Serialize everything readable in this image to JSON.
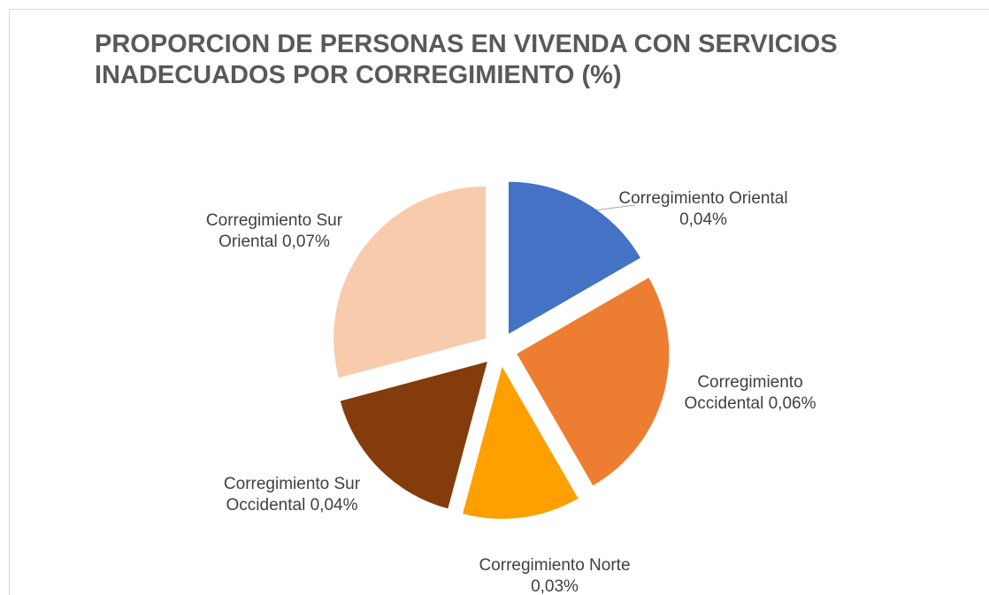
{
  "chart_data": {
    "type": "pie",
    "title": "PROPORCION DE PERSONAS EN VIVENDA CON SERVICIOS INADECUADOS POR CORREGIMIENTO (%)",
    "categories": [
      "Corregimiento Oriental",
      "Corregimiento Occidental",
      "Corregimiento Norte",
      "Corregimiento Sur Occidental",
      "Corregimiento Sur Oriental"
    ],
    "values": [
      0.04,
      0.06,
      0.03,
      0.04,
      0.07
    ],
    "value_labels": [
      "0,04%",
      "0,06%",
      "0,03%",
      "0,04%",
      "0,07%"
    ],
    "colors": [
      "#4472c4",
      "#ed7d31",
      "#ffa000",
      "#843c0c",
      "#f8cbad"
    ]
  }
}
